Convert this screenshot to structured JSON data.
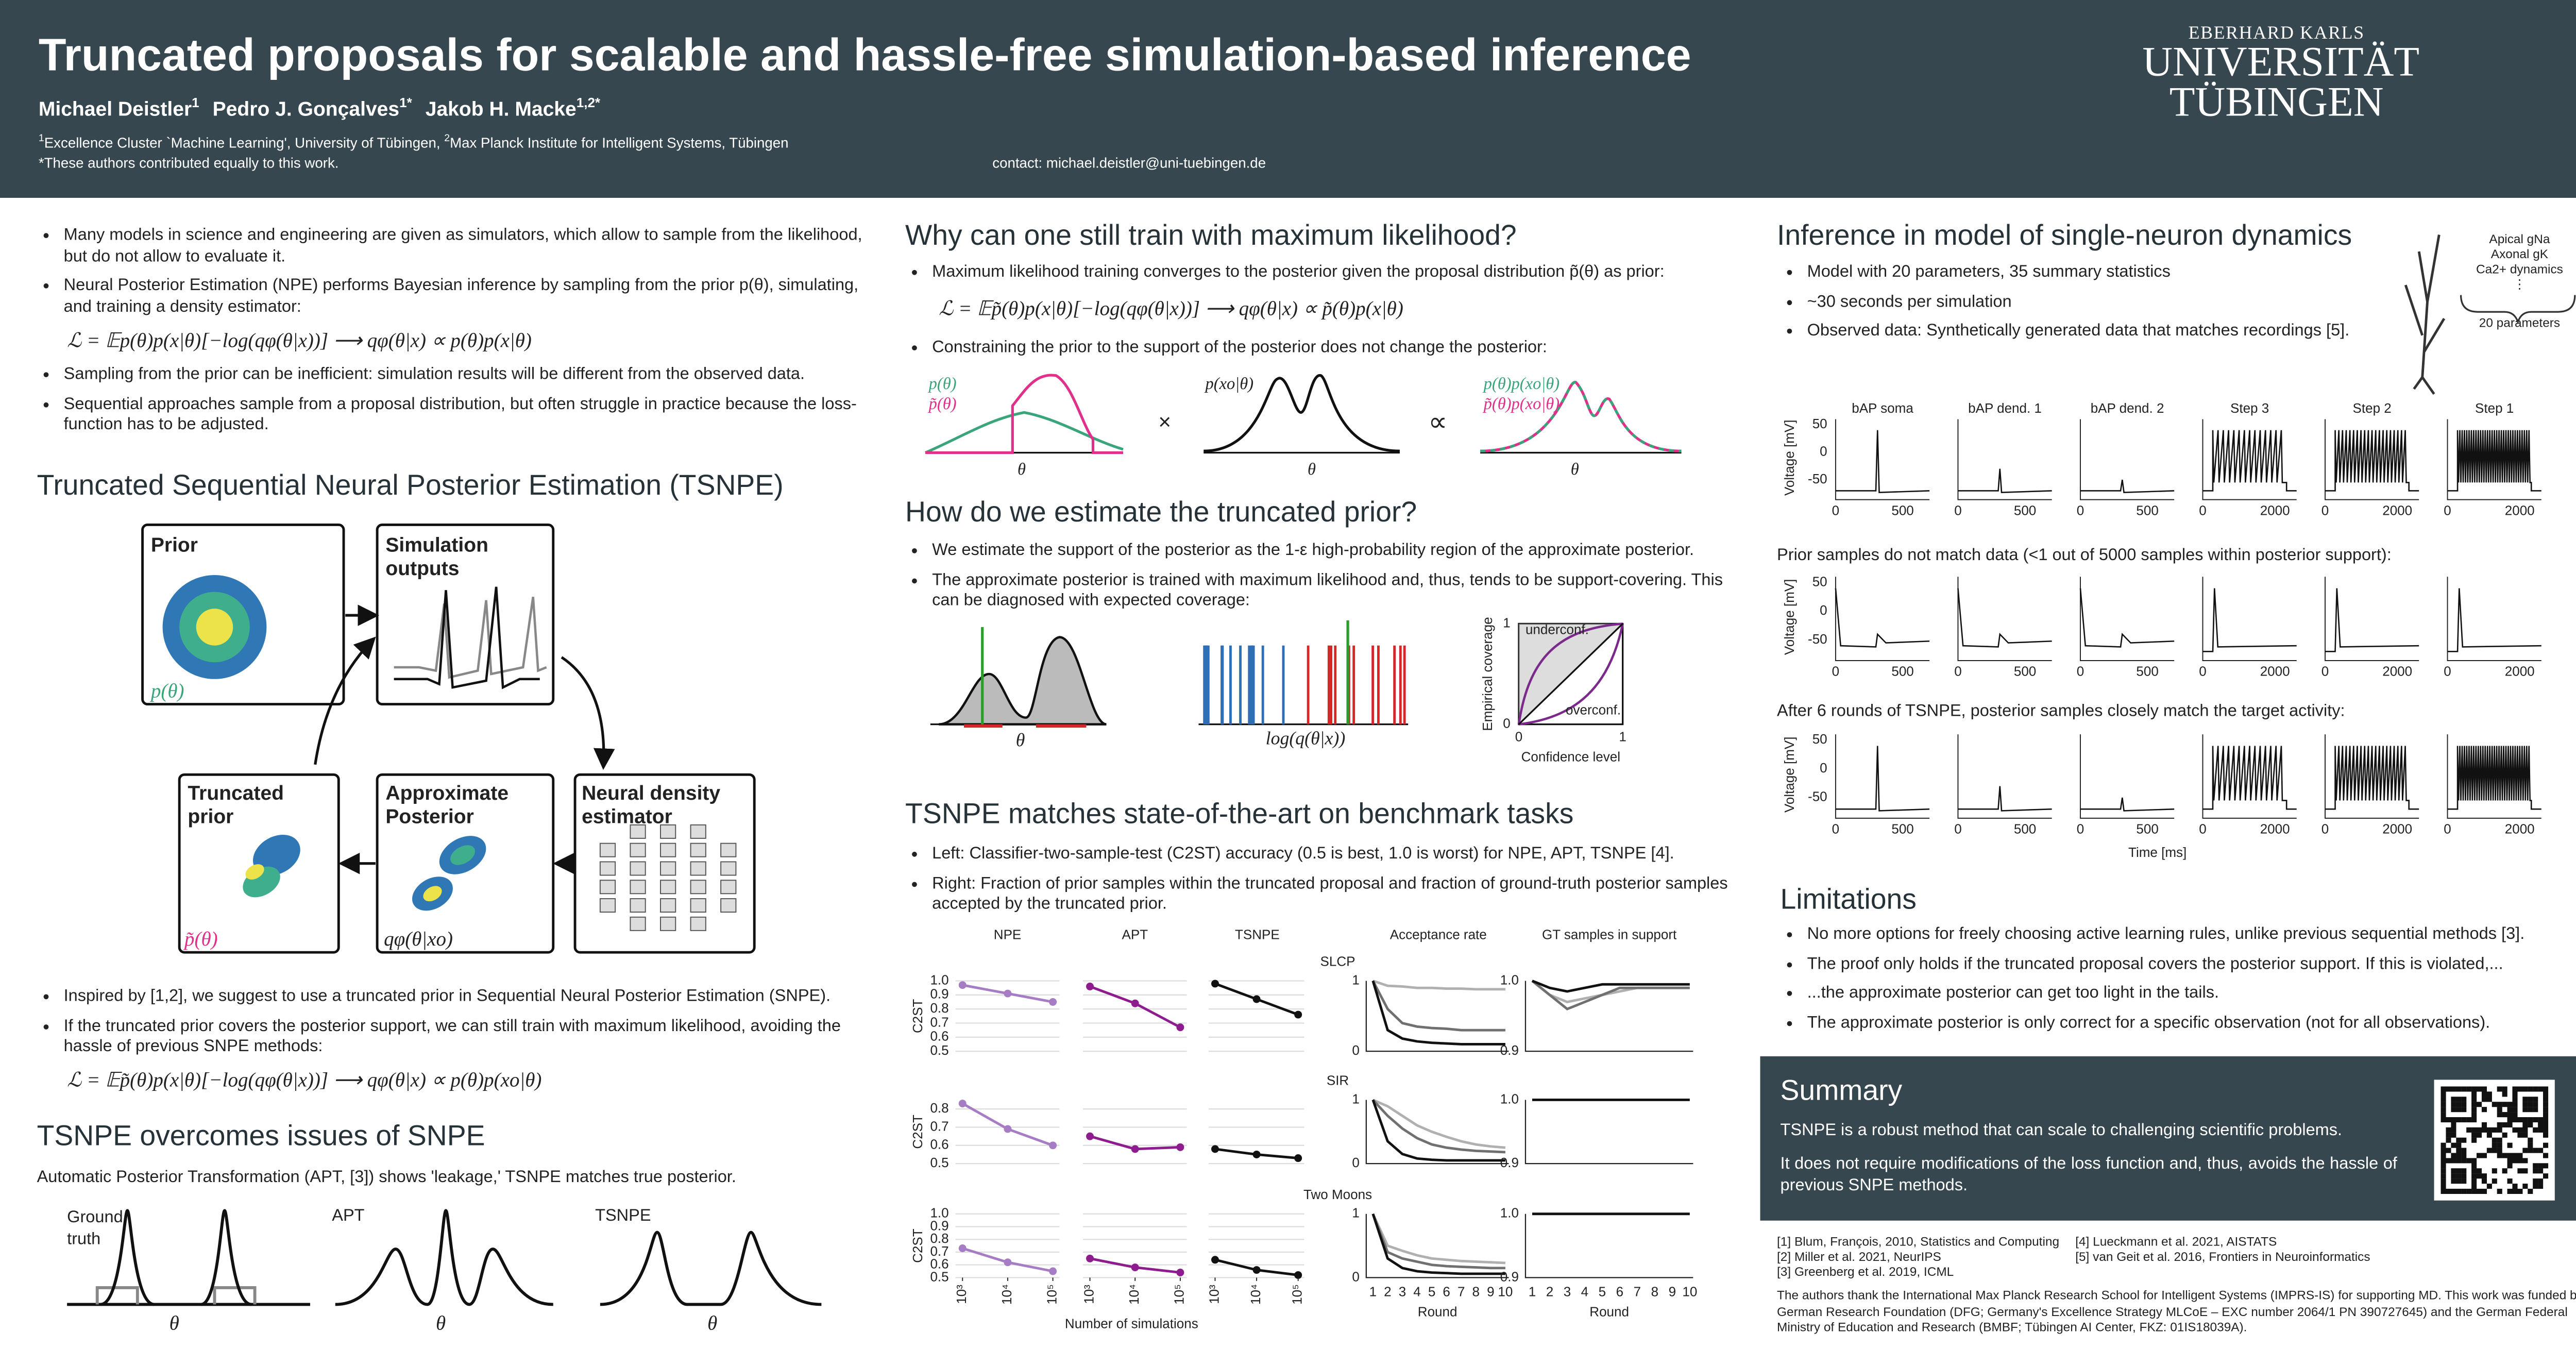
{
  "header": {
    "title": "Truncated proposals for scalable and hassle-free simulation-based inference",
    "authors": [
      {
        "name": "Michael Deistler",
        "sup": "1"
      },
      {
        "name": "Pedro J. Gonçalves",
        "sup": "1*"
      },
      {
        "name": "Jakob H. Macke",
        "sup": "1,2*"
      }
    ],
    "affiliations": [
      {
        "sup": "1",
        "text": "Excellence Cluster `Machine Learning', University of Tübingen, "
      },
      {
        "sup": "2",
        "text": "Max Planck Institute for Intelligent Systems, Tübingen"
      }
    ],
    "note": "*These authors contributed equally to this work.",
    "contact": "contact: michael.deistler@uni-tuebingen.de",
    "logo": [
      "EBERHARD KARLS",
      "UNIVERSITÄT",
      "TÜBINGEN"
    ]
  },
  "intro": {
    "bullets": [
      "Many models in science and engineering are given as simulators, which allow to sample from the likelihood, but do not allow to evaluate it.",
      "Neural Posterior Estimation (NPE) performs Bayesian inference by sampling from the prior p(θ), simulating, and training a density estimator:"
    ],
    "equation": "ℒ = 𝔼p(θ)p(x|θ)[−log(qφ(θ|x))]   ⟶   qφ(θ|x) ∝ p(θ)p(x|θ)",
    "bullets_after": [
      "Sampling from the prior can be inefficient: simulation results will be different from the observed data.",
      "Sequential approaches sample from a proposal distribution, but often struggle in practice because the loss-function has to be adjusted."
    ]
  },
  "tsnpe": {
    "title": "Truncated Sequential Neural Posterior Estimation (TSNPE)",
    "boxes": [
      "Prior",
      "Simulation outputs",
      "Neural density estimator",
      "Approximate Posterior",
      "Truncated prior"
    ],
    "symbols": [
      "p(θ)",
      "qφ(θ|xo)",
      "p̃(θ)"
    ],
    "bullets": [
      "Inspired by [1,2], we suggest to use a truncated prior in Sequential Neural Posterior Estimation (SNPE).",
      "If the truncated prior covers the posterior support, we can still train with maximum likelihood, avoiding the hassle of previous SNPE methods:"
    ],
    "equation": "ℒ = 𝔼p̃(θ)p(x|θ)[−log(qφ(θ|x))]   ⟶   qφ(θ|x) ∝ p(θ)p(xo|θ)"
  },
  "issues": {
    "title": "TSNPE overcomes issues of SNPE",
    "text": "Automatic Posterior Transformation (APT, [3]) shows 'leakage,' TSNPE matches true posterior.",
    "panels": [
      "Ground truth",
      "APT",
      "TSNPE"
    ],
    "axis": "θ"
  },
  "why": {
    "title": "Why can one still train with maximum likelihood?",
    "bullets": [
      "Maximum likelihood training converges to the posterior given the proposal distribution p̃(θ) as prior:"
    ],
    "equation": "ℒ = 𝔼p̃(θ)p(x|θ)[−log(qφ(θ|x))]   ⟶   qφ(θ|x) ∝ p̃(θ)p(x|θ)",
    "bullets_after": [
      "Constraining the prior to the support of the posterior does not change the posterior:"
    ],
    "labels": [
      "p(θ)",
      "p̃(θ)",
      "p(xo|θ)",
      "×",
      "∝",
      "p(θ)p(xo|θ)",
      "p̃(θ)p(xo|θ)"
    ],
    "axis": "θ"
  },
  "estimate": {
    "title": "How do we estimate the truncated prior?",
    "bullets": [
      "We estimate the support of the posterior as the 1-ε high-probability region of the approximate posterior.",
      "The approximate posterior is trained with maximum likelihood and, thus, tends to be support-covering. This can be diagnosed with expected coverage:"
    ],
    "axis": "θ",
    "logq": "log(q(θ|x))",
    "underconf": "underconf.",
    "overconf": "overconf.",
    "ylabel": "Empirical coverage",
    "xlabel": "Confidence level",
    "ticks": [
      0,
      1
    ]
  },
  "benchmark": {
    "title": "TSNPE matches state-of-the-art on benchmark tasks",
    "bullets": [
      "Left: Classifier-two-sample-test (C2ST) accuracy (0.5 is best, 1.0 is worst) for NPE, APT, TSNPE [4].",
      "Right: Fraction of prior samples within the truncated proposal and fraction of ground-truth posterior samples accepted by the truncated prior."
    ],
    "chart": {
      "type": "line",
      "columns": [
        "NPE",
        "APT",
        "TSNPE",
        "Acceptance rate",
        "GT samples in support"
      ],
      "ylabel": "C2ST",
      "xlabel": "Number of simulations",
      "round_label": "Round",
      "x": [
        1000,
        10000,
        100000
      ],
      "xscale": "log",
      "xlim": [
        700,
        140000
      ],
      "xticks": [
        {
          "value": 1000,
          "label": "10³"
        },
        {
          "value": 10000,
          "label": "10⁴"
        },
        {
          "value": 100000,
          "label": "10⁵"
        }
      ],
      "rounds": [
        1,
        2,
        3,
        4,
        5,
        6,
        7,
        8,
        9,
        10
      ],
      "acceptance_ylim": [
        0,
        1
      ],
      "acceptance_yticks": [
        0,
        1
      ],
      "gt_ylim": [
        0.9,
        1.0
      ],
      "gt_yticks": [
        0.9,
        {
          "value": 1.0,
          "label": "1.0"
        }
      ],
      "grid": true,
      "tasks": [
        {
          "name": "SLCP",
          "ylim": [
            0.5,
            1.0
          ],
          "yticks": [
            0.5,
            0.6,
            0.7,
            0.8,
            0.9,
            {
              "value": 1.0,
              "label": "1.0"
            }
          ],
          "series": [
            {
              "color": "#a67cc4",
              "values": [
                0.97,
                0.91,
                0.85
              ]
            },
            {
              "color": "#8e1c8e",
              "values": [
                0.96,
                0.84,
                0.67
              ]
            },
            {
              "color": "#111111",
              "values": [
                0.98,
                0.87,
                0.76
              ]
            }
          ],
          "acceptance": [
            {
              "color": "#b0b0b0",
              "values": [
                1,
                0.93,
                0.92,
                0.9,
                0.9,
                0.89,
                0.89,
                0.88,
                0.88,
                0.88
              ]
            },
            {
              "color": "#707070",
              "values": [
                1,
                0.6,
                0.4,
                0.35,
                0.33,
                0.32,
                0.3,
                0.3,
                0.3,
                0.3
              ]
            },
            {
              "color": "#111111",
              "values": [
                1,
                0.3,
                0.18,
                0.14,
                0.12,
                0.11,
                0.1,
                0.1,
                0.1,
                0.1
              ]
            }
          ],
          "gt": [
            {
              "color": "#b0b0b0",
              "values": [
                1,
                0.98,
                0.97,
                0.975,
                0.98,
                0.985,
                0.99,
                0.99,
                0.99,
                0.99
              ]
            },
            {
              "color": "#707070",
              "values": [
                1,
                0.98,
                0.96,
                0.97,
                0.98,
                0.99,
                0.99,
                0.99,
                0.99,
                0.99
              ]
            },
            {
              "color": "#111111",
              "values": [
                1,
                0.99,
                0.985,
                0.99,
                0.995,
                0.995,
                0.995,
                0.995,
                0.995,
                0.995
              ]
            }
          ]
        },
        {
          "name": "SIR",
          "ylim": [
            0.5,
            0.85
          ],
          "yticks": [
            0.5,
            0.6,
            0.7,
            0.8
          ],
          "series": [
            {
              "color": "#a67cc4",
              "values": [
                0.83,
                0.69,
                0.6
              ]
            },
            {
              "color": "#8e1c8e",
              "values": [
                0.65,
                0.58,
                0.59
              ]
            },
            {
              "color": "#111111",
              "values": [
                0.58,
                0.55,
                0.53
              ]
            }
          ],
          "acceptance": [
            {
              "color": "#b0b0b0",
              "values": [
                1,
                0.9,
                0.75,
                0.6,
                0.5,
                0.42,
                0.35,
                0.3,
                0.27,
                0.25
              ]
            },
            {
              "color": "#707070",
              "values": [
                1,
                0.75,
                0.55,
                0.4,
                0.3,
                0.25,
                0.22,
                0.2,
                0.19,
                0.18
              ]
            },
            {
              "color": "#111111",
              "values": [
                1,
                0.35,
                0.15,
                0.08,
                0.06,
                0.05,
                0.05,
                0.05,
                0.05,
                0.05
              ]
            }
          ],
          "gt": [
            {
              "color": "#111111",
              "values": [
                1,
                1,
                1,
                1,
                1,
                1,
                1,
                1,
                1,
                1
              ]
            }
          ]
        },
        {
          "name": "Two Moons",
          "ylim": [
            0.5,
            1.0
          ],
          "yticks": [
            0.5,
            0.6,
            0.7,
            0.8,
            0.9,
            {
              "value": 1.0,
              "label": "1.0"
            }
          ],
          "series": [
            {
              "color": "#a67cc4",
              "values": [
                0.73,
                0.62,
                0.55
              ]
            },
            {
              "color": "#8e1c8e",
              "values": [
                0.65,
                0.58,
                0.54
              ]
            },
            {
              "color": "#111111",
              "values": [
                0.64,
                0.56,
                0.52
              ]
            }
          ],
          "acceptance": [
            {
              "color": "#b0b0b0",
              "values": [
                1,
                0.5,
                0.42,
                0.35,
                0.3,
                0.28,
                0.26,
                0.25,
                0.24,
                0.23
              ]
            },
            {
              "color": "#707070",
              "values": [
                1,
                0.4,
                0.3,
                0.25,
                0.2,
                0.18,
                0.17,
                0.16,
                0.15,
                0.15
              ]
            },
            {
              "color": "#111111",
              "values": [
                1,
                0.3,
                0.15,
                0.1,
                0.08,
                0.07,
                0.06,
                0.06,
                0.06,
                0.06
              ]
            }
          ],
          "gt": [
            {
              "color": "#111111",
              "values": [
                1,
                1,
                1,
                1,
                1,
                1,
                1,
                1,
                1,
                1
              ]
            }
          ]
        }
      ]
    }
  },
  "neuron": {
    "title": "Inference in model of single-neuron dynamics",
    "bullets": [
      "Model with 20 parameters, 35 summary statistics",
      "~30 seconds per simulation",
      "Observed data: Synthetically generated data that matches recordings [5]."
    ],
    "inset": [
      "Apical gNa",
      "Axonal gK",
      "Ca2+ dynamics",
      "⋮",
      "20  parameters"
    ],
    "panels": [
      "bAP soma",
      "bAP dend. 1",
      "bAP dend. 2",
      "Step 3",
      "Step 2",
      "Step 1"
    ],
    "captions": [
      "Prior samples do not match data (<1 out of 5000 samples within posterior support):",
      "After 6 rounds of TSNPE, posterior samples closely match the target activity:"
    ],
    "ylabel": "Voltage [mV]",
    "xlabel": "Time [ms]",
    "yticks": [
      50,
      0,
      -50
    ],
    "xticks_short": [
      0,
      500
    ],
    "xticks_long": [
      0,
      2000
    ]
  },
  "limitations": {
    "title": "Limitations",
    "bullets": [
      "No more options for freely choosing active learning rules, unlike previous sequential methods [3].",
      "The proof only holds if the truncated proposal covers the posterior support. If this is violated,...",
      "...the approximate posterior can get too light in the tails.",
      "The approximate posterior is only correct for a specific observation (not for all observations)."
    ]
  },
  "summary": {
    "title": "Summary",
    "paragraphs": [
      "TSNPE is a robust method that can scale to challenging scientific problems.",
      "It does not require modifications of the loss function and, thus, avoids the hassle of previous SNPE methods."
    ]
  },
  "references": [
    "[1] Blum, François, 2010, Statistics and Computing",
    "[2] Miller et al. 2021, NeurIPS",
    "[3] Greenberg et al. 2019, ICML",
    "[4] Lueckmann et al. 2021, AISTATS",
    "[5] van Geit et al. 2016, Frontiers in Neuroinformatics"
  ],
  "acknowledgment": "The authors thank the International Max Planck Research School for Intelligent Systems (IMPRS-IS) for supporting MD. This work was funded by the German Research Foundation (DFG; Germany's Excellence Strategy MLCoE – EXC number 2064/1 PN 390727645) and the German Federal Ministry of Education and Research (BMBF; Tübingen AI Center, FKZ: 01IS18039A)."
}
